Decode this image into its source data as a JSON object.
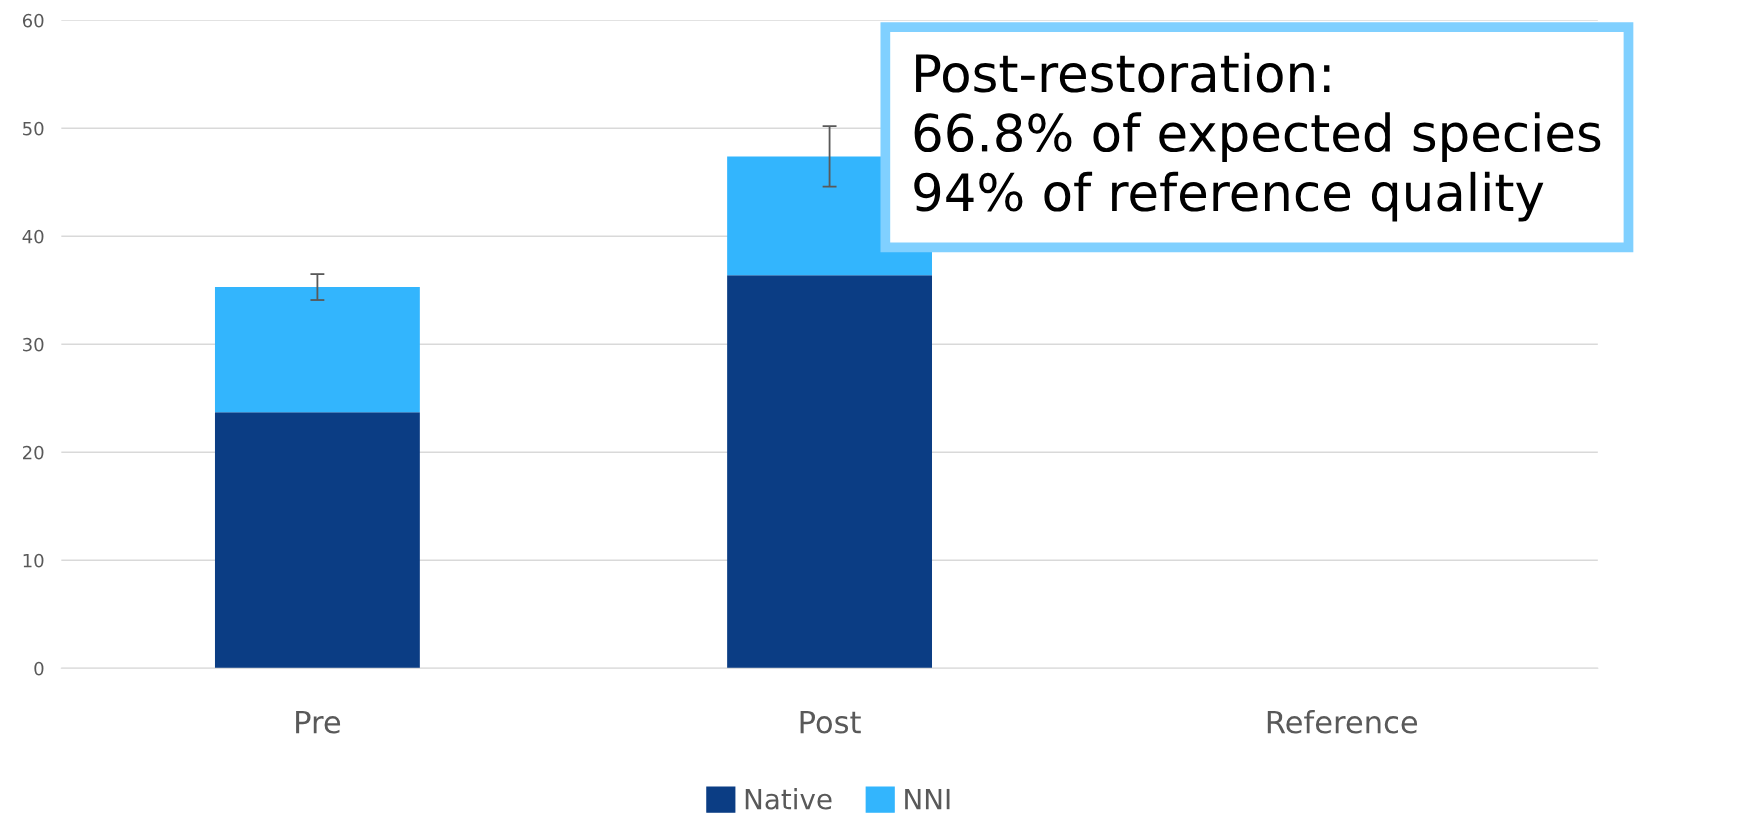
{
  "chart_data": {
    "type": "bar",
    "stacked": true,
    "categories": [
      "Pre",
      "Post",
      "Reference"
    ],
    "series": [
      {
        "name": "Native",
        "color": "#0b3d84",
        "values": [
          23.7,
          36.4,
          null
        ]
      },
      {
        "name": "NNI",
        "color": "#33b5fd",
        "values": [
          11.6,
          11.0,
          null
        ],
        "errors": [
          1.2,
          2.8,
          null
        ]
      }
    ],
    "ylim": [
      0,
      60
    ],
    "yticks": [
      0,
      10,
      20,
      30,
      40,
      50,
      60
    ],
    "grid": "y",
    "legend": "bottom",
    "annotations": [
      "Post-restoration:\n66.8% of expected species\n94% of reference quality"
    ]
  }
}
